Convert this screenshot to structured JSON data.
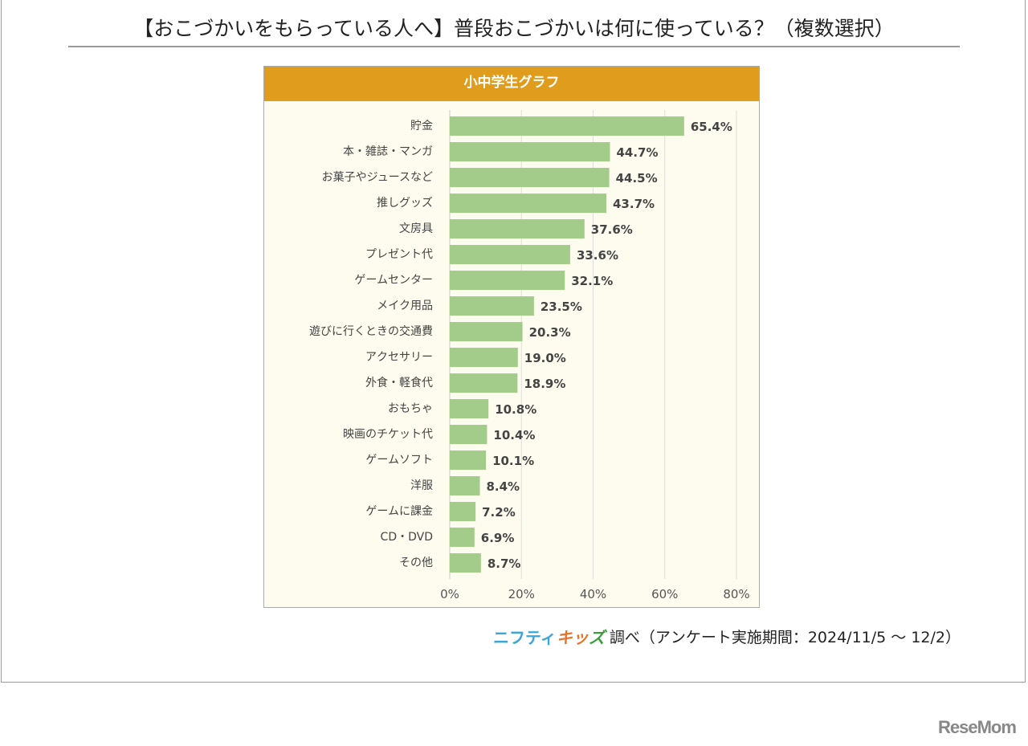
{
  "title": "【おこづかいをもらっている人へ】普段おこづかいは何に使っている？（複数選択）",
  "source": {
    "logo": [
      "ニフティ",
      "キッ",
      "ズ"
    ],
    "text": "調べ（アンケート実施期間：2024/11/5 ～ 12/2）"
  },
  "watermark": "ReseMom",
  "colors": {
    "header": "#e09c1c",
    "bar": "#a3cc8b",
    "background": "#fdfcee"
  },
  "chart_data": {
    "type": "bar",
    "orientation": "horizontal",
    "title": "小中学生グラフ",
    "categories": [
      "貯金",
      "本・雑誌・マンガ",
      "お菓子やジュースなど",
      "推しグッズ",
      "文房具",
      "プレゼント代",
      "ゲームセンター",
      "メイク用品",
      "遊びに行くときの交通費",
      "アクセサリー",
      "外食・軽食代",
      "おもちゃ",
      "映画のチケット代",
      "ゲームソフト",
      "洋服",
      "ゲームに課金",
      "CD・DVD",
      "その他"
    ],
    "values": [
      65.4,
      44.7,
      44.5,
      43.7,
      37.6,
      33.6,
      32.1,
      23.5,
      20.3,
      19.0,
      18.9,
      10.8,
      10.4,
      10.1,
      8.4,
      7.2,
      6.9,
      8.7
    ],
    "value_labels": [
      "65.4%",
      "44.7%",
      "44.5%",
      "43.7%",
      "37.6%",
      "33.6%",
      "32.1%",
      "23.5%",
      "20.3%",
      "19.0%",
      "18.9%",
      "10.8%",
      "10.4%",
      "10.1%",
      "8.4%",
      "7.2%",
      "6.9%",
      "8.7%"
    ],
    "xlim": [
      0,
      80
    ],
    "xticks": [
      "0%",
      "20%",
      "40%",
      "60%",
      "80%"
    ],
    "grid": true
  }
}
